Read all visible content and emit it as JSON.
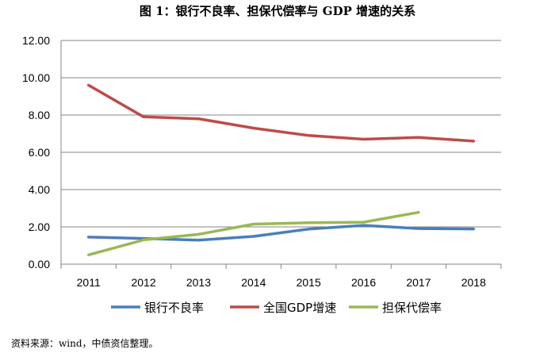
{
  "chart_data": {
    "type": "line",
    "title": "图 1：银行不良率、担保代偿率与 GDP 增速的关系",
    "xlabel": "",
    "ylabel": "",
    "categories": [
      "2011",
      "2012",
      "2013",
      "2014",
      "2015",
      "2016",
      "2017",
      "2018"
    ],
    "ylim": [
      0,
      12
    ],
    "yticks": [
      "0.00",
      "2.00",
      "4.00",
      "6.00",
      "8.00",
      "10.00",
      "12.00"
    ],
    "grid": true,
    "legend_position": "bottom",
    "series": [
      {
        "name": "银行不良率",
        "color": "#4a7ebb",
        "values": [
          1.45,
          1.38,
          1.29,
          1.49,
          1.88,
          2.08,
          1.91,
          1.89
        ]
      },
      {
        "name": "全国GDP增速",
        "color": "#be4b48",
        "values": [
          9.6,
          7.9,
          7.8,
          7.3,
          6.9,
          6.7,
          6.8,
          6.6
        ]
      },
      {
        "name": "担保代偿率",
        "color": "#98b954",
        "values": [
          0.5,
          1.3,
          1.6,
          2.15,
          2.22,
          2.25,
          2.78,
          null
        ]
      }
    ]
  },
  "source_note": "资料来源：wind，中债资信整理。"
}
